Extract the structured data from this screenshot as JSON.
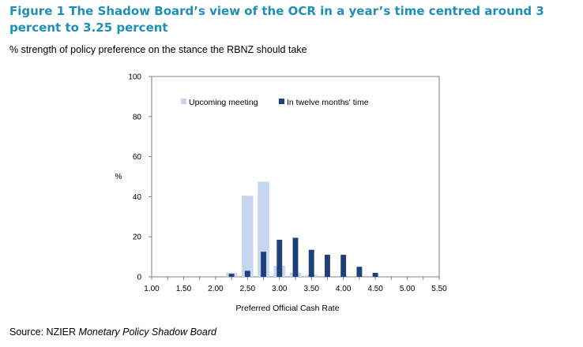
{
  "figure": {
    "title": "Figure 1 The Shadow Board’s view of the OCR in a year’s time centred around 3 percent to 3.25 percent",
    "subtitle": "% strength of policy preference on the stance the RBNZ should take",
    "source_prefix": "Source: NZIER ",
    "source_italic": "Monetary Policy Shadow Board"
  },
  "chart_data": {
    "type": "bar",
    "title": "",
    "xlabel": "Preferred Official Cash Rate",
    "ylabel": "%",
    "ylim": [
      0,
      100
    ],
    "yticks": [
      0,
      20,
      40,
      60,
      80,
      100
    ],
    "xlim": [
      1.0,
      5.5
    ],
    "xtick_labels": [
      "1.00",
      "1.50",
      "2.00",
      "2.50",
      "3.00",
      "3.50",
      "4.00",
      "4.50",
      "5.00",
      "5.50"
    ],
    "x": [
      2.25,
      2.5,
      2.75,
      3.0,
      3.25,
      3.5,
      3.75,
      4.0,
      4.25,
      4.5
    ],
    "series": [
      {
        "name": "Upcoming meeting",
        "color": "#c6d6ee",
        "values": [
          2,
          40.5,
          47.5,
          5.5,
          2,
          1,
          0,
          0,
          0,
          0
        ]
      },
      {
        "name": "In twelve months' time",
        "color": "#1f3f7a",
        "values": [
          1.5,
          3,
          12.5,
          18.5,
          19.5,
          13.5,
          11,
          11,
          5,
          2
        ]
      }
    ],
    "grid": false,
    "legend_position": "top-center"
  }
}
